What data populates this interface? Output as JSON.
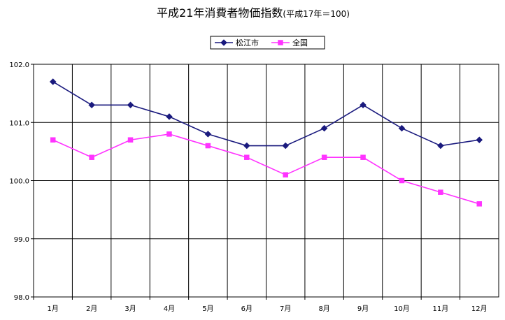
{
  "chart_data": {
    "type": "line",
    "title": "平成21年消費者物価指数",
    "subtitle": "(平成17年＝100)",
    "xlabel": "",
    "ylabel": "",
    "categories": [
      "1月",
      "2月",
      "3月",
      "4月",
      "5月",
      "6月",
      "7月",
      "8月",
      "9月",
      "10月",
      "11月",
      "12月"
    ],
    "ylim": [
      98.0,
      102.0
    ],
    "yticks": [
      "98.0",
      "99.0",
      "100.0",
      "101.0",
      "102.0"
    ],
    "grid": true,
    "legend_position": "top-right",
    "series": [
      {
        "name": "松江市",
        "color": "#1a1a7e",
        "marker": "diamond",
        "values": [
          101.7,
          101.3,
          101.3,
          101.1,
          100.8,
          100.6,
          100.6,
          100.9,
          101.3,
          100.9,
          100.6,
          100.7
        ]
      },
      {
        "name": "全国",
        "color": "#ff33ff",
        "marker": "square",
        "values": [
          100.7,
          100.4,
          100.7,
          100.8,
          100.6,
          100.4,
          100.1,
          100.4,
          100.4,
          100.0,
          99.8,
          99.6
        ]
      }
    ]
  }
}
